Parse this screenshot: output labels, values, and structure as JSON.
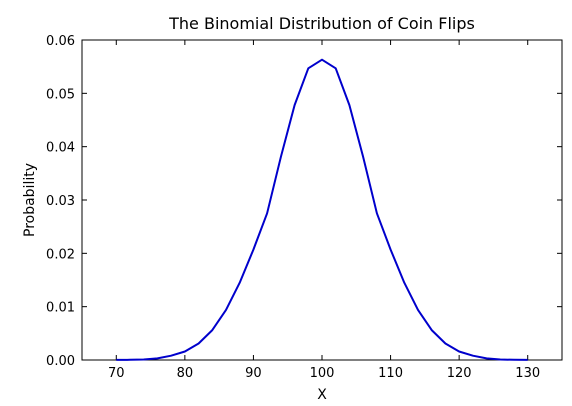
{
  "chart_data": {
    "type": "line",
    "title": "The Binomial Distribution of Coin Flips",
    "xlabel": "X",
    "ylabel": "Probability",
    "xlim": [
      65,
      135
    ],
    "ylim": [
      0,
      0.06
    ],
    "xticks": [
      70,
      80,
      90,
      100,
      110,
      120,
      130
    ],
    "yticks": [
      "0.00",
      "0.01",
      "0.02",
      "0.03",
      "0.04",
      "0.05",
      "0.06"
    ],
    "grid": false,
    "series": [
      {
        "color": "#0000cc",
        "x": [
          70,
          72,
          74,
          76,
          78,
          80,
          82,
          84,
          86,
          88,
          90,
          92,
          94,
          96,
          98,
          100,
          102,
          104,
          106,
          108,
          110,
          112,
          114,
          116,
          118,
          120,
          122,
          124,
          126,
          128,
          130
        ],
        "y": [
          1e-05,
          3e-05,
          0.0001,
          0.0003,
          0.0008,
          0.0016,
          0.0031,
          0.0056,
          0.0094,
          0.0145,
          0.0207,
          0.0275,
          0.0381,
          0.0478,
          0.0547,
          0.0563,
          0.0547,
          0.0478,
          0.0381,
          0.0275,
          0.0207,
          0.0145,
          0.0094,
          0.0056,
          0.0031,
          0.0016,
          0.0008,
          0.0003,
          0.0001,
          3e-05,
          1e-05
        ]
      }
    ]
  }
}
